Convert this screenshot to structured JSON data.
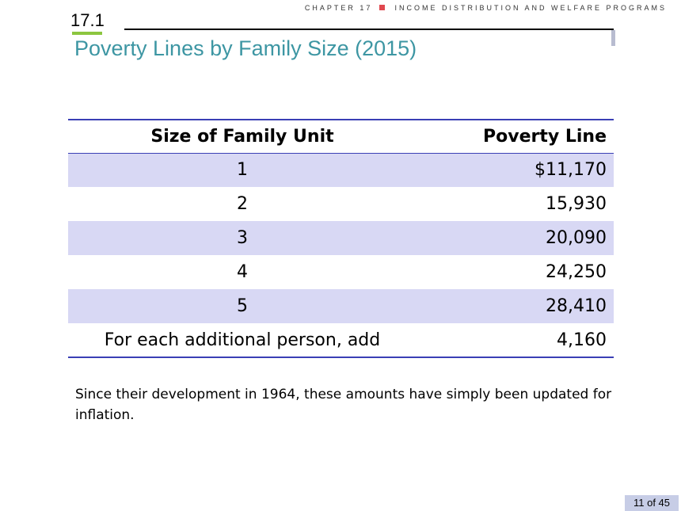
{
  "header": {
    "chapter_label": "CHAPTER 17",
    "chapter_title": "INCOME DISTRIBUTION AND WELFARE PROGRAMS",
    "section_number": "17.1",
    "colors": {
      "section_underline": "#8cc63f",
      "separator": "#e0484f",
      "title": "#3d96a3"
    }
  },
  "title": "Poverty Lines by Family Size (2015)",
  "table": {
    "headers": [
      "Size of Family Unit",
      "Poverty Line"
    ],
    "rows": [
      [
        "1",
        "$11,170"
      ],
      [
        "2",
        "15,930"
      ],
      [
        "3",
        "20,090"
      ],
      [
        "4",
        "24,250"
      ],
      [
        "5",
        "28,410"
      ],
      [
        "For each additional person, add",
        "4,160"
      ]
    ],
    "colors": {
      "rule": "#3a3fb5",
      "shaded_row": "#d8d8f4"
    }
  },
  "footnote": "Since their development in 1964, these amounts have simply been updated for inflation.",
  "page_indicator": "11 of 45"
}
